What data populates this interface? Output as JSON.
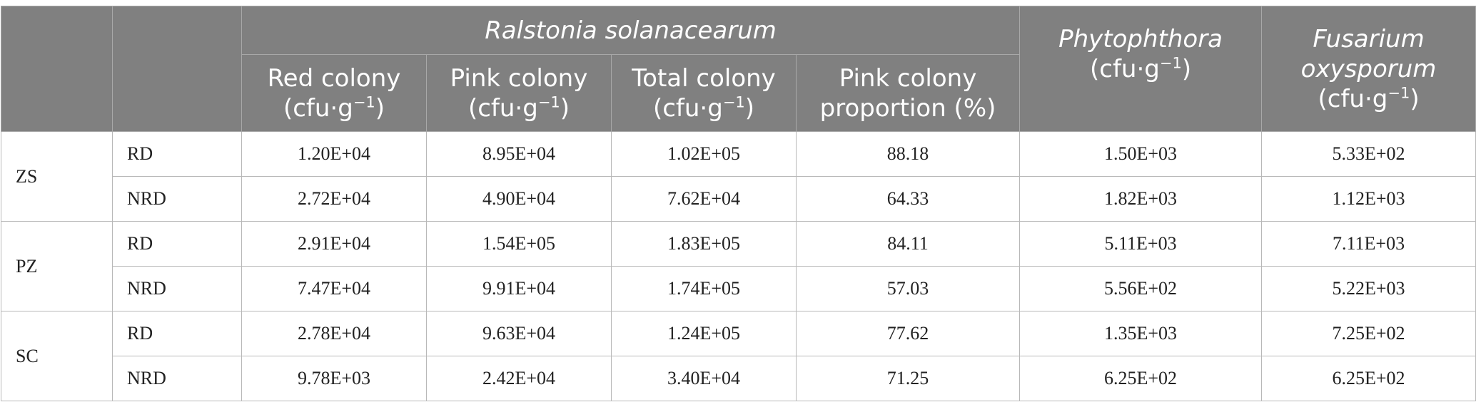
{
  "header": {
    "group": "Ralstonia solanacearum",
    "columns": [
      {
        "line1": "Red colony",
        "unit_base": "(cfu·g",
        "unit_exp": "−1",
        "unit_end": ")"
      },
      {
        "line1": "Pink colony",
        "unit_base": "(cfu·g",
        "unit_exp": "−1",
        "unit_end": ")"
      },
      {
        "line1": "Total colony",
        "unit_base": "(cfu·g",
        "unit_exp": "−1",
        "unit_end": ")"
      },
      {
        "line1": "Pink colony",
        "line2": "proportion (%)"
      }
    ],
    "phytophthora": {
      "name": "Phytophthora",
      "unit_base": "(cfu·g",
      "unit_exp": "−1",
      "unit_end": ")"
    },
    "fusarium": {
      "name_line1": "Fusarium",
      "name_line2": "oxysporum",
      "unit_base": "(cfu·g",
      "unit_exp": "−1",
      "unit_end": ")"
    }
  },
  "sites": [
    {
      "name": "ZS",
      "rows": [
        {
          "cond": "RD",
          "values": [
            "1.20E+04",
            "8.95E+04",
            "1.02E+05",
            "88.18",
            "1.50E+03",
            "5.33E+02"
          ]
        },
        {
          "cond": "NRD",
          "values": [
            "2.72E+04",
            "4.90E+04",
            "7.62E+04",
            "64.33",
            "1.82E+03",
            "1.12E+03"
          ]
        }
      ]
    },
    {
      "name": "PZ",
      "rows": [
        {
          "cond": "RD",
          "values": [
            "2.91E+04",
            "1.54E+05",
            "1.83E+05",
            "84.11",
            "5.11E+03",
            "7.11E+03"
          ]
        },
        {
          "cond": "NRD",
          "values": [
            "7.47E+04",
            "9.91E+04",
            "1.74E+05",
            "57.03",
            "5.56E+02",
            "5.22E+03"
          ]
        }
      ]
    },
    {
      "name": "SC",
      "rows": [
        {
          "cond": "RD",
          "values": [
            "2.78E+04",
            "9.63E+04",
            "1.24E+05",
            "77.62",
            "1.35E+03",
            "7.25E+02"
          ]
        },
        {
          "cond": "NRD",
          "values": [
            "9.78E+03",
            "2.42E+04",
            "3.40E+04",
            "71.25",
            "6.25E+02",
            "6.25E+02"
          ]
        }
      ]
    }
  ]
}
